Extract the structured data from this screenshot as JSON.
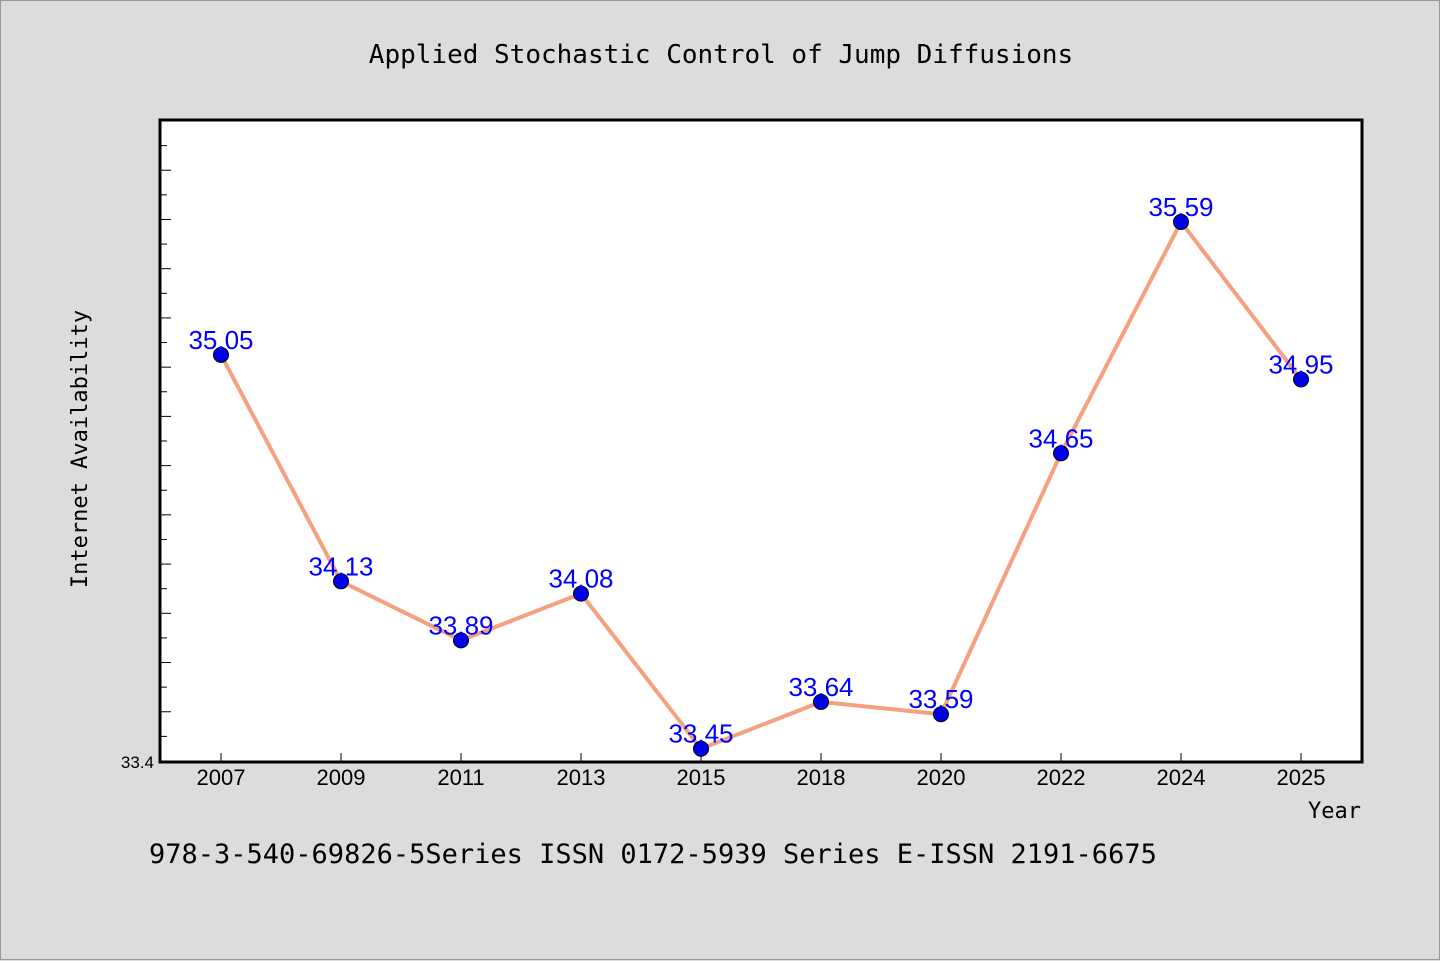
{
  "chart_data": {
    "type": "line",
    "title": "Applied Stochastic Control of Jump Diffusions",
    "xlabel": "Year",
    "ylabel": "Internet Availability",
    "categories": [
      "2007",
      "2009",
      "2011",
      "2013",
      "2015",
      "2018",
      "2020",
      "2022",
      "2024",
      "2025"
    ],
    "series": [
      {
        "values": [
          35.05,
          34.13,
          33.89,
          34.08,
          33.45,
          33.64,
          33.59,
          34.65,
          35.59,
          34.95
        ],
        "line_color": "#f5a07f",
        "marker_color": "#0000ee",
        "label_color": "#0000ff"
      }
    ],
    "data_labels": [
      "35.05",
      "34.13",
      "33.89",
      "34.08",
      "33.45",
      "33.64",
      "33.59",
      "34.65",
      "35.59",
      "34.95"
    ],
    "y_tick_labels": [
      "33.4"
    ],
    "ylim": [
      33.4,
      36.0
    ],
    "y_minor_step": 0.1,
    "grid": false,
    "legend": "none",
    "footer": "978-3-540-69826-5Series ISSN 0172-5939 Series E-ISSN 2191-6675",
    "background_color": "#dcdcdc",
    "plot_background": "#ffffff"
  }
}
